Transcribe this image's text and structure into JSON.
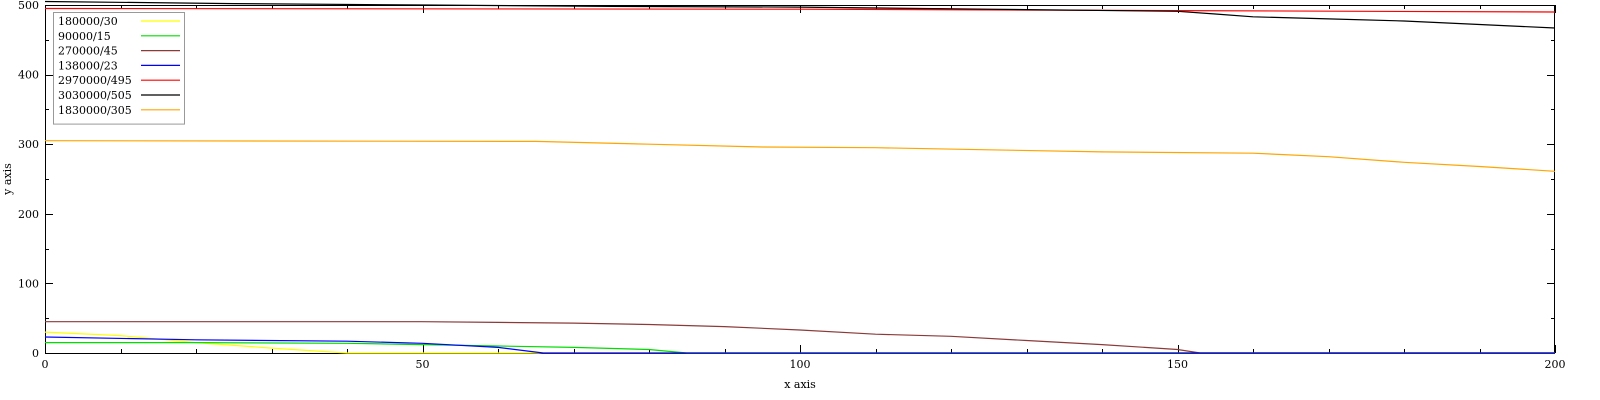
{
  "chart_data": {
    "type": "line",
    "xlabel": "x axis",
    "ylabel": "y axis",
    "xlim": [
      0,
      200
    ],
    "ylim": [
      0,
      500
    ],
    "xticks": [
      0,
      50,
      100,
      150,
      200
    ],
    "yticks": [
      0,
      100,
      200,
      300,
      400,
      500
    ],
    "grid": false,
    "legend": {
      "position": "top-left",
      "boxed": true
    },
    "series": [
      {
        "name": "180000/30",
        "color": "#ffff00",
        "x": [
          0,
          10,
          20,
          30,
          40,
          200
        ],
        "y": [
          30,
          25,
          15,
          7,
          0,
          0
        ]
      },
      {
        "name": "90000/15",
        "color": "#00dd00",
        "x": [
          0,
          20,
          40,
          50,
          60,
          70,
          80,
          85,
          200
        ],
        "y": [
          15,
          15,
          14,
          12,
          10,
          8,
          5,
          0,
          0
        ]
      },
      {
        "name": "270000/45",
        "color": "#8b3a3a",
        "x": [
          0,
          50,
          60,
          70,
          80,
          90,
          100,
          110,
          120,
          130,
          140,
          150,
          153,
          200
        ],
        "y": [
          45,
          45,
          44,
          43,
          41,
          38,
          33,
          27,
          24,
          18,
          12,
          5,
          0,
          0
        ]
      },
      {
        "name": "138000/23",
        "color": "#0000ff",
        "x": [
          0,
          20,
          40,
          50,
          60,
          66,
          200
        ],
        "y": [
          23,
          19,
          17,
          14,
          8,
          0,
          0
        ]
      },
      {
        "name": "2970000/495",
        "color": "#ff0000",
        "x": [
          0,
          100,
          150,
          200
        ],
        "y": [
          495,
          494,
          492,
          490
        ]
      },
      {
        "name": "3030000/505",
        "color": "#000000",
        "x": [
          0,
          25,
          50,
          75,
          100,
          125,
          150,
          155,
          160,
          170,
          180,
          190,
          200
        ],
        "y": [
          505,
          502,
          500,
          498,
          497,
          494,
          491,
          487,
          483,
          480,
          477,
          472,
          467
        ]
      },
      {
        "name": "1830000/305",
        "color": "#ffa500",
        "x": [
          0,
          65,
          80,
          95,
          110,
          125,
          140,
          160,
          170,
          180,
          190,
          200
        ],
        "y": [
          305,
          304,
          300,
          296,
          295,
          292,
          289,
          287,
          282,
          274,
          268,
          261
        ]
      }
    ]
  }
}
